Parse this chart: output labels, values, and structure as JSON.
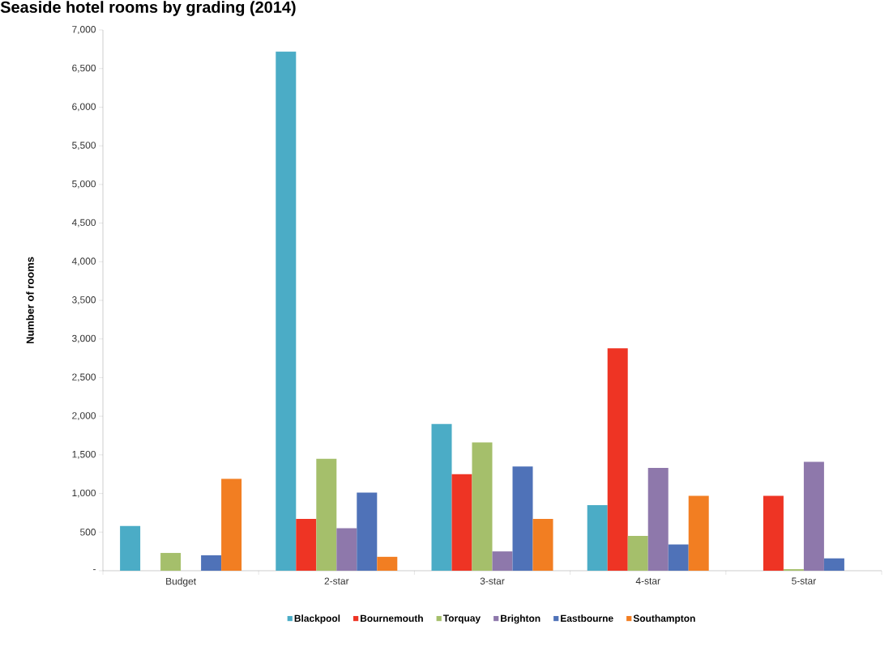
{
  "chart_data": {
    "type": "bar",
    "title": "Seaside hotel rooms by grading (2014)",
    "ylabel": "Number of rooms",
    "categories": [
      "Budget",
      "2-star",
      "3-star",
      "4-star",
      "5-star"
    ],
    "series": [
      {
        "name": "Blackpool",
        "color": "#4bacc6",
        "values": [
          580,
          6720,
          1900,
          850,
          0
        ]
      },
      {
        "name": "Bournemouth",
        "color": "#ee3424",
        "values": [
          0,
          670,
          1250,
          2880,
          970
        ]
      },
      {
        "name": "Torquay",
        "color": "#a5bf6b",
        "values": [
          230,
          1450,
          1660,
          450,
          20
        ]
      },
      {
        "name": "Brighton",
        "color": "#8e78ab",
        "values": [
          0,
          550,
          250,
          1330,
          1410
        ]
      },
      {
        "name": "Eastbourne",
        "color": "#4f72b8",
        "values": [
          200,
          1010,
          1350,
          340,
          160
        ]
      },
      {
        "name": "Southampton",
        "color": "#f27e22",
        "values": [
          1190,
          180,
          670,
          970,
          0
        ]
      }
    ],
    "ylim": [
      0,
      7000
    ],
    "yticks": [
      {
        "value": 0,
        "label": "-"
      },
      500,
      {
        "value": 1000,
        "label": "1,000"
      },
      {
        "value": 1500,
        "label": "1,500"
      },
      {
        "value": 2000,
        "label": "2,000"
      },
      {
        "value": 2500,
        "label": "2,500"
      },
      {
        "value": 3000,
        "label": "3,000"
      },
      {
        "value": 3500,
        "label": "3,500"
      },
      {
        "value": 4000,
        "label": "4,000"
      },
      {
        "value": 4500,
        "label": "4,500"
      },
      {
        "value": 5000,
        "label": "5,000"
      },
      {
        "value": 5500,
        "label": "5,500"
      },
      {
        "value": 6000,
        "label": "6,000"
      },
      {
        "value": 6500,
        "label": "6,500"
      },
      {
        "value": 7000,
        "label": "7,000"
      }
    ],
    "grid": false,
    "legend": "bottom"
  }
}
